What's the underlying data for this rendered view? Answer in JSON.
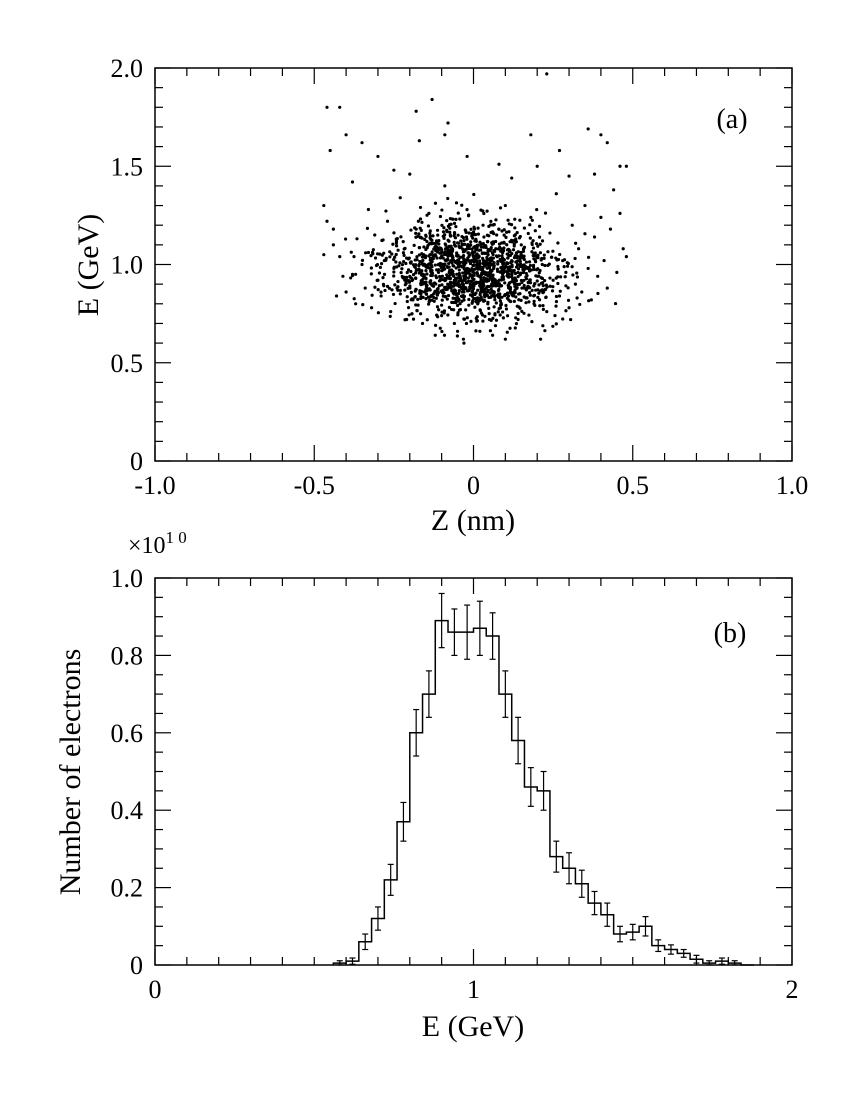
{
  "colors": {
    "ink": "#000000",
    "background": "#ffffff"
  },
  "chart_data": [
    {
      "type": "scatter",
      "panel_label": "(a)",
      "xlabel": "Z (nm)",
      "ylabel": "E (GeV)",
      "xlim": [
        -1.0,
        1.0
      ],
      "ylim": [
        0,
        2.0
      ],
      "x_tick_labels": [
        "-1.0",
        "-0.5",
        "0",
        "0.5",
        "1.0"
      ],
      "x_tick_values": [
        -1.0,
        -0.5,
        0,
        0.5,
        1.0
      ],
      "y_tick_labels": [
        "0",
        "0.5",
        "1.0",
        "1.5",
        "2.0"
      ],
      "y_tick_values": [
        0,
        0.5,
        1.0,
        1.5,
        2.0
      ],
      "grid": false,
      "points": [
        [
          -0.46,
          1.8
        ],
        [
          -0.42,
          1.8
        ],
        [
          -0.35,
          1.62
        ],
        [
          -0.18,
          1.78
        ],
        [
          -0.13,
          1.84
        ],
        [
          -0.08,
          1.72
        ],
        [
          0.23,
          1.97
        ],
        [
          -0.45,
          1.58
        ],
        [
          -0.4,
          1.66
        ],
        [
          -0.3,
          1.55
        ],
        [
          -0.17,
          1.63
        ],
        [
          -0.09,
          1.66
        ],
        [
          0.08,
          1.51
        ],
        [
          0.18,
          1.66
        ],
        [
          0.27,
          1.58
        ],
        [
          0.36,
          1.69
        ],
        [
          0.4,
          1.66
        ],
        [
          0.42,
          1.62
        ],
        [
          0.46,
          1.5
        ],
        [
          0.48,
          1.5
        ],
        [
          -0.02,
          1.55
        ],
        [
          -0.47,
          1.3
        ],
        [
          -0.46,
          1.22
        ],
        [
          -0.44,
          1.18
        ],
        [
          -0.44,
          1.1
        ],
        [
          -0.42,
          1.04
        ],
        [
          -0.47,
          1.05
        ],
        [
          -0.41,
          0.94
        ],
        [
          -0.4,
          0.86
        ],
        [
          -0.43,
          0.84
        ],
        [
          -0.38,
          0.95
        ],
        [
          -0.37,
          0.8
        ],
        [
          -0.35,
          1.0
        ],
        [
          -0.34,
          0.88
        ],
        [
          -0.33,
          1.28
        ],
        [
          -0.32,
          0.78
        ],
        [
          -0.31,
          1.15
        ],
        [
          -0.3,
          0.92
        ],
        [
          -0.29,
          0.84
        ],
        [
          -0.28,
          1.02
        ],
        [
          -0.27,
          1.22
        ],
        [
          -0.26,
          0.76
        ],
        [
          -0.25,
          0.98
        ],
        [
          -0.24,
          0.88
        ],
        [
          -0.23,
          1.34
        ],
        [
          -0.22,
          1.06
        ],
        [
          -0.21,
          0.72
        ],
        [
          -0.2,
          0.94
        ],
        [
          -0.19,
          0.82
        ],
        [
          -0.18,
          1.18
        ],
        [
          -0.17,
          1.0
        ],
        [
          -0.16,
          0.7
        ],
        [
          -0.15,
          0.9
        ],
        [
          -0.14,
          1.26
        ],
        [
          -0.13,
          0.84
        ],
        [
          -0.12,
          1.08
        ],
        [
          -0.11,
          0.96
        ],
        [
          -0.1,
          0.74
        ],
        [
          -0.09,
          1.4
        ],
        [
          -0.08,
          0.88
        ],
        [
          -0.07,
          1.02
        ],
        [
          -0.06,
          0.92
        ],
        [
          -0.05,
          0.66
        ],
        [
          -0.04,
          1.12
        ],
        [
          -0.03,
          0.86
        ],
        [
          -0.02,
          0.98
        ],
        [
          -0.01,
          0.9
        ],
        [
          0.0,
          1.04
        ],
        [
          0.01,
          0.82
        ],
        [
          0.02,
          0.94
        ],
        [
          0.03,
          1.2
        ],
        [
          0.04,
          0.88
        ],
        [
          0.05,
          0.99
        ],
        [
          0.06,
          0.64
        ],
        [
          0.07,
          1.08
        ],
        [
          0.08,
          0.9
        ],
        [
          0.09,
          0.96
        ],
        [
          0.1,
          1.3
        ],
        [
          0.11,
          0.84
        ],
        [
          0.12,
          1.02
        ],
        [
          0.13,
          0.92
        ],
        [
          0.14,
          0.72
        ],
        [
          0.15,
          1.1
        ],
        [
          0.16,
          0.88
        ],
        [
          0.17,
          0.98
        ],
        [
          0.18,
          1.24
        ],
        [
          0.19,
          0.8
        ],
        [
          0.2,
          0.94
        ],
        [
          0.21,
          1.06
        ],
        [
          0.22,
          0.86
        ],
        [
          0.23,
          0.76
        ],
        [
          0.24,
          1.16
        ],
        [
          0.25,
          0.92
        ],
        [
          0.26,
          1.36
        ],
        [
          0.27,
          0.84
        ],
        [
          0.28,
          1.02
        ],
        [
          0.29,
          0.96
        ],
        [
          0.3,
          0.78
        ],
        [
          0.31,
          1.2
        ],
        [
          0.32,
          0.9
        ],
        [
          0.33,
          1.08
        ],
        [
          0.34,
          0.86
        ],
        [
          0.35,
          1.3
        ],
        [
          0.36,
          0.98
        ],
        [
          0.37,
          0.82
        ],
        [
          0.38,
          1.14
        ],
        [
          0.39,
          0.94
        ],
        [
          0.4,
          1.24
        ],
        [
          0.41,
          1.02
        ],
        [
          0.42,
          0.88
        ],
        [
          0.43,
          1.18
        ],
        [
          0.44,
          1.38
        ],
        [
          0.45,
          0.96
        ],
        [
          0.46,
          1.26
        ],
        [
          0.47,
          1.08
        ],
        [
          0.48,
          1.04
        ],
        [
          -0.03,
          0.6
        ],
        [
          0.1,
          0.62
        ],
        [
          -0.12,
          0.64
        ],
        [
          0.02,
          0.66
        ],
        [
          -0.06,
          0.7
        ],
        [
          0.05,
          0.72
        ],
        [
          -0.2,
          1.46
        ],
        [
          0.12,
          1.44
        ],
        [
          -0.38,
          1.42
        ],
        [
          0.3,
          1.45
        ],
        [
          0.38,
          1.46
        ],
        [
          -0.25,
          1.48
        ],
        [
          0.2,
          1.5
        ]
      ]
    },
    {
      "type": "histogram",
      "panel_label": "(b)",
      "xlabel": "E (GeV)",
      "ylabel": "Number of electrons",
      "y_multiplier": "×10",
      "y_multiplier_exp": "1 0",
      "xlim": [
        0,
        2
      ],
      "ylim": [
        0,
        1.0
      ],
      "x_tick_labels": [
        "0",
        "1",
        "2"
      ],
      "x_tick_values": [
        0,
        1,
        2
      ],
      "y_tick_labels": [
        "0",
        "0.2",
        "0.4",
        "0.6",
        "0.8",
        "1.0"
      ],
      "y_tick_values": [
        0,
        0.2,
        0.4,
        0.6,
        0.8,
        1.0
      ],
      "grid": false,
      "bin_width": 0.04,
      "bins_start": [
        0.56,
        0.6,
        0.64,
        0.68,
        0.72,
        0.76,
        0.8,
        0.84,
        0.88,
        0.92,
        0.96,
        1.0,
        1.04,
        1.08,
        1.12,
        1.16,
        1.2,
        1.24,
        1.28,
        1.32,
        1.36,
        1.4,
        1.44,
        1.48,
        1.52,
        1.56,
        1.6,
        1.64,
        1.68,
        1.72,
        1.76,
        1.8,
        1.84
      ],
      "values": [
        0.005,
        0.01,
        0.06,
        0.12,
        0.22,
        0.37,
        0.6,
        0.7,
        0.89,
        0.86,
        0.86,
        0.87,
        0.85,
        0.7,
        0.58,
        0.46,
        0.45,
        0.28,
        0.25,
        0.21,
        0.16,
        0.13,
        0.08,
        0.085,
        0.1,
        0.05,
        0.04,
        0.03,
        0.015,
        0.005,
        0.01,
        0.005,
        0.0
      ],
      "errors": [
        0.006,
        0.008,
        0.02,
        0.03,
        0.04,
        0.05,
        0.06,
        0.06,
        0.07,
        0.06,
        0.07,
        0.07,
        0.06,
        0.06,
        0.06,
        0.05,
        0.05,
        0.04,
        0.04,
        0.035,
        0.03,
        0.03,
        0.02,
        0.02,
        0.025,
        0.015,
        0.012,
        0.01,
        0.01,
        0.006,
        0.008,
        0.006,
        0.0
      ]
    }
  ]
}
